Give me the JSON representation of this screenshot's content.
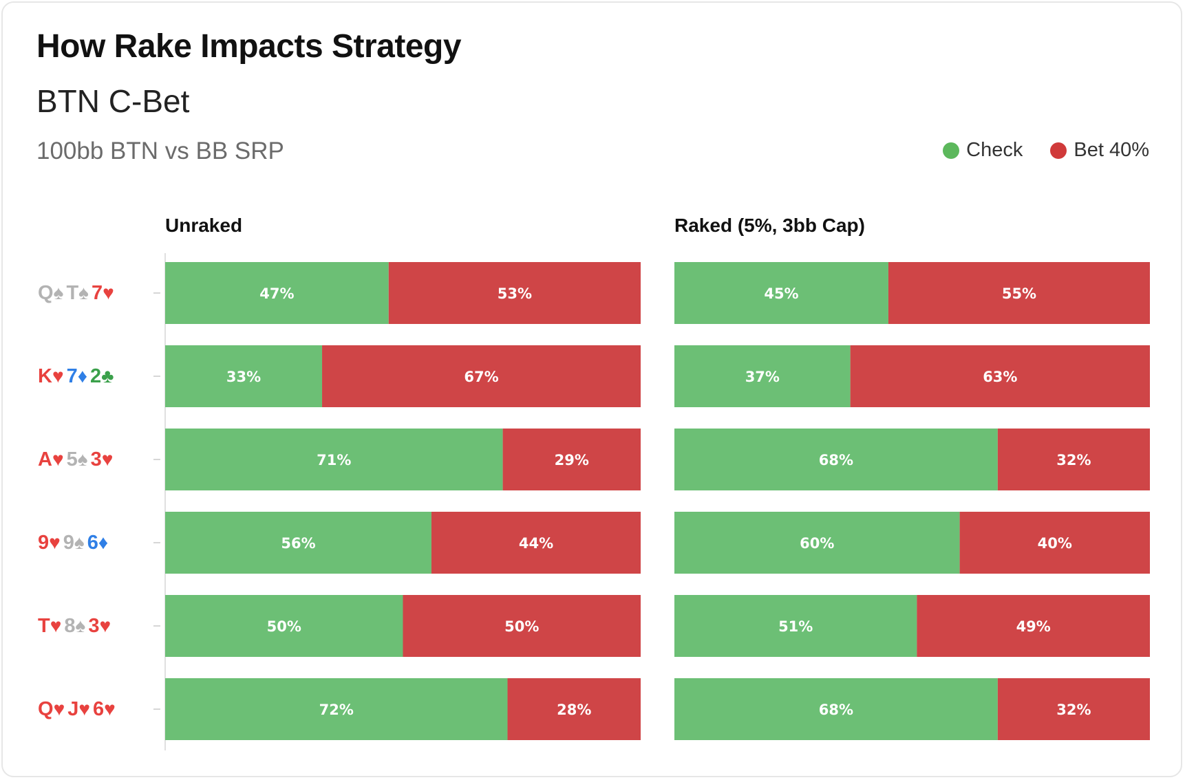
{
  "title": "How Rake Impacts Strategy",
  "subtitle": "BTN C-Bet",
  "subsubtitle": "100bb BTN vs BB SRP",
  "legend": [
    {
      "label": "Check",
      "color": "#5cb85c",
      "icon": "circle-icon"
    },
    {
      "label": "Bet 40%",
      "color": "#d03a3a",
      "icon": "circle-icon"
    }
  ],
  "colors": {
    "check": "#6cbf75",
    "bet": "#cf4547",
    "red_suit": "#e8423f",
    "blue_suit": "#2f7fe6",
    "green_suit": "#3aa04a",
    "grey_suit": "#b3b3b3"
  },
  "chart_data": {
    "type": "bar",
    "stacked": true,
    "orientation": "horizontal",
    "categories": [
      "Q♠T♠7♥",
      "K♥7♦2♣",
      "A♥5♠3♥",
      "9♥9♠6♦",
      "T♥8♠3♥",
      "Q♥J♥6♥"
    ],
    "panels": [
      {
        "title": "Unraked",
        "series": [
          {
            "name": "Check",
            "values": [
              47,
              33,
              71,
              56,
              50,
              72
            ]
          },
          {
            "name": "Bet 40%",
            "values": [
              53,
              67,
              29,
              44,
              50,
              28
            ]
          }
        ]
      },
      {
        "title": "Raked (5%, 3bb Cap)",
        "series": [
          {
            "name": "Check",
            "values": [
              45,
              37,
              68,
              60,
              51,
              68
            ]
          },
          {
            "name": "Bet 40%",
            "values": [
              55,
              63,
              32,
              40,
              49,
              32
            ]
          }
        ]
      }
    ],
    "xlim": [
      0,
      100
    ],
    "value_suffix": "%"
  },
  "boards": [
    [
      {
        "rank": "Q",
        "suit": "♠",
        "color": "grey"
      },
      {
        "rank": "T",
        "suit": "♠",
        "color": "grey"
      },
      {
        "rank": "7",
        "suit": "♥",
        "color": "red"
      }
    ],
    [
      {
        "rank": "K",
        "suit": "♥",
        "color": "red"
      },
      {
        "rank": "7",
        "suit": "♦",
        "color": "blue"
      },
      {
        "rank": "2",
        "suit": "♣",
        "color": "green"
      }
    ],
    [
      {
        "rank": "A",
        "suit": "♥",
        "color": "red"
      },
      {
        "rank": "5",
        "suit": "♠",
        "color": "grey"
      },
      {
        "rank": "3",
        "suit": "♥",
        "color": "red"
      }
    ],
    [
      {
        "rank": "9",
        "suit": "♥",
        "color": "red"
      },
      {
        "rank": "9",
        "suit": "♠",
        "color": "grey"
      },
      {
        "rank": "6",
        "suit": "♦",
        "color": "blue"
      }
    ],
    [
      {
        "rank": "T",
        "suit": "♥",
        "color": "red"
      },
      {
        "rank": "8",
        "suit": "♠",
        "color": "grey"
      },
      {
        "rank": "3",
        "suit": "♥",
        "color": "red"
      }
    ],
    [
      {
        "rank": "Q",
        "suit": "♥",
        "color": "red"
      },
      {
        "rank": "J",
        "suit": "♥",
        "color": "red"
      },
      {
        "rank": "6",
        "suit": "♥",
        "color": "red"
      }
    ]
  ]
}
